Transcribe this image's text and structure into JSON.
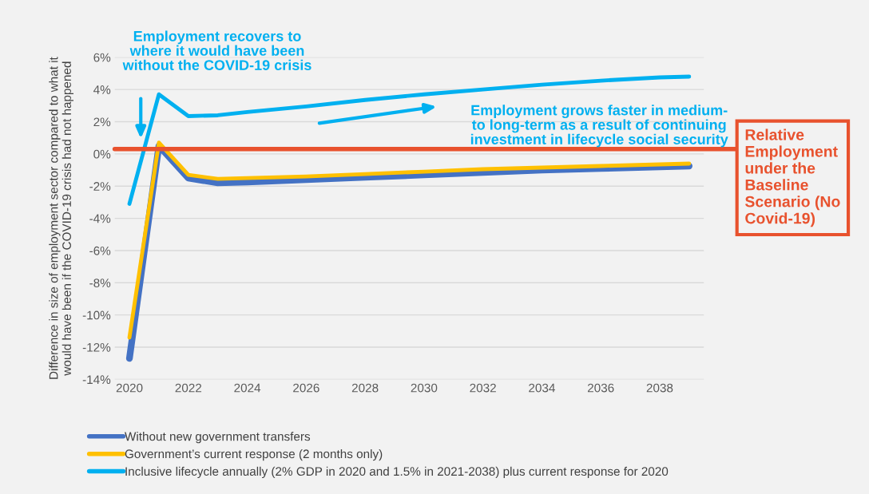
{
  "chart_data": {
    "type": "line",
    "ylabel": "Difference in size of employment sector compared to what it\nwould have been if the COVID-19 crisis had not happened",
    "x": [
      2020,
      2021,
      2022,
      2023,
      2024,
      2026,
      2028,
      2030,
      2032,
      2034,
      2036,
      2038,
      2039
    ],
    "series": [
      {
        "name": "Without new government transfers",
        "color": "#4472c4",
        "values": [
          -12.7,
          0.5,
          -1.5,
          -1.8,
          -1.75,
          -1.6,
          -1.45,
          -1.3,
          -1.15,
          -1.0,
          -0.9,
          -0.8,
          -0.75
        ]
      },
      {
        "name": "Government’s current response (2 months only)",
        "color": "#ffc000",
        "values": [
          -11.4,
          0.7,
          -1.3,
          -1.55,
          -1.5,
          -1.4,
          -1.25,
          -1.1,
          -0.95,
          -0.85,
          -0.75,
          -0.65,
          -0.6
        ]
      },
      {
        "name": "Inclusive lifecycle annually (2% GDP in 2020 and 1.5% in 2021-2038) plus current response for 2020",
        "color": "#00b0f0",
        "values": [
          -3.1,
          3.7,
          2.35,
          2.4,
          2.6,
          2.95,
          3.35,
          3.7,
          4.0,
          4.3,
          4.55,
          4.75,
          4.8
        ]
      }
    ],
    "xlim": [
      2019.5,
      2039.5
    ],
    "xticks": [
      2020,
      2022,
      2024,
      2026,
      2028,
      2030,
      2032,
      2034,
      2036,
      2038
    ],
    "ylim": [
      -14,
      6
    ],
    "yticks": [
      {
        "value": -14,
        "label": "-14%"
      },
      {
        "value": -12,
        "label": "-12%"
      },
      {
        "value": -10,
        "label": "-10%"
      },
      {
        "value": -8,
        "label": "-8%"
      },
      {
        "value": -6,
        "label": "-6%"
      },
      {
        "value": -4,
        "label": "-4%"
      },
      {
        "value": -2,
        "label": "-2%"
      },
      {
        "value": 0,
        "label": "0%"
      },
      {
        "value": 2,
        "label": "2%"
      },
      {
        "value": 4,
        "label": "4%"
      },
      {
        "value": 6,
        "label": "6%"
      }
    ],
    "ref_lines": [
      {
        "axis": "y",
        "value": 0.3,
        "label": "Relative Employment under the Baseline Scenario (No Covid-19)",
        "color": "#e8522e"
      }
    ],
    "annotations": [
      "Employment recovers to\nwhere it would have been\nwithout the COVID-19 crisis",
      "Employment grows faster in medium-\nto long-term as a result of continuing\ninvestment in lifecycle social security"
    ],
    "grid": "y",
    "legend": "bottom"
  }
}
